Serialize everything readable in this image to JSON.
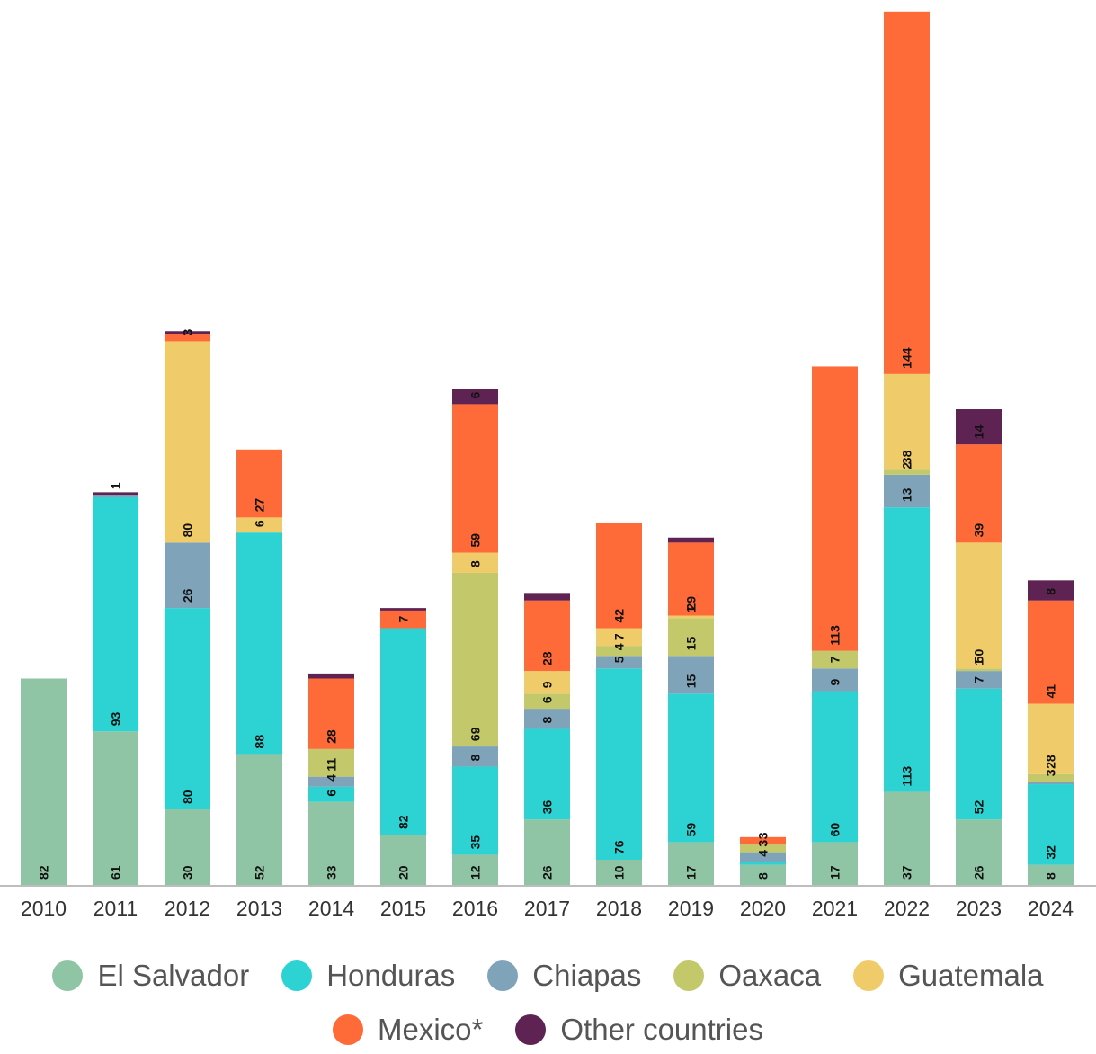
{
  "chart_data": {
    "type": "bar",
    "stacked": true,
    "categories": [
      "2010",
      "2011",
      "2012",
      "2013",
      "2014",
      "2015",
      "2016",
      "2017",
      "2018",
      "2019",
      "2020",
      "2021",
      "2022",
      "2023",
      "2024"
    ],
    "series": [
      {
        "name": "El Salvador",
        "color": "#8fc4a4",
        "values": [
          82,
          61,
          30,
          52,
          33,
          20,
          12,
          26,
          10,
          17,
          8,
          17,
          37,
          26,
          8
        ],
        "labels": [
          "82",
          "61",
          "30",
          "52",
          "33",
          "20",
          "12",
          "26",
          "10",
          "17",
          "8",
          "17",
          "37",
          "26",
          "8"
        ]
      },
      {
        "name": "Honduras",
        "color": "#2dd3d3",
        "values": [
          null,
          93,
          80,
          88,
          6,
          82,
          35,
          36,
          76,
          59,
          1,
          60,
          113,
          52,
          32
        ],
        "labels": [
          "",
          "93",
          "80",
          "88",
          "6",
          "82",
          "35",
          "36",
          "76",
          "59",
          "",
          "60",
          "113",
          "52",
          "32"
        ]
      },
      {
        "name": "Chiapas",
        "color": "#7fa4b9",
        "values": [
          null,
          1,
          26,
          null,
          4,
          null,
          8,
          8,
          5,
          15,
          4,
          9,
          13,
          7,
          1
        ],
        "labels": [
          "",
          "",
          "26",
          "",
          "4",
          "",
          "8",
          "8",
          "5",
          "15",
          "4",
          "9",
          "13",
          "7",
          ""
        ]
      },
      {
        "name": "Oaxaca",
        "color": "#c3c96a",
        "values": [
          null,
          null,
          null,
          null,
          11,
          null,
          69,
          6,
          4,
          15,
          3,
          7,
          2,
          1,
          3
        ],
        "labels": [
          "",
          "",
          "",
          "",
          "11",
          "",
          "69",
          "6",
          "4",
          "15",
          "3",
          "7",
          "2",
          "1",
          "3"
        ]
      },
      {
        "name": "Guatemala",
        "color": "#f0cb69",
        "values": [
          null,
          null,
          80,
          6,
          null,
          null,
          8,
          9,
          7,
          1,
          null,
          null,
          38,
          50,
          28
        ],
        "labels": [
          "",
          "",
          "80",
          "6",
          "",
          "",
          "8",
          "9",
          "7",
          "1",
          "",
          "",
          "38",
          "50",
          "28"
        ]
      },
      {
        "name": "Mexico*",
        "color": "#ff6b38",
        "values": [
          null,
          null,
          3,
          27,
          28,
          7,
          59,
          28,
          42,
          29,
          3,
          113,
          144,
          39,
          41
        ],
        "labels": [
          "",
          "",
          "3",
          "27",
          "28",
          "7",
          "59",
          "28",
          "42",
          "29",
          "3",
          "113",
          "144",
          "39",
          "41"
        ]
      },
      {
        "name": "Other countries",
        "color": "#5e2352",
        "values": [
          null,
          1,
          1,
          null,
          2,
          1,
          6,
          3,
          null,
          2,
          null,
          null,
          null,
          14,
          8
        ],
        "labels": [
          "",
          "1",
          "",
          "",
          "",
          "",
          "6",
          "",
          "",
          "",
          "",
          "",
          "",
          "14",
          "8"
        ]
      }
    ],
    "ylim": [
      0,
      348
    ],
    "grid": false,
    "legend_position": "bottom",
    "title": "",
    "xlabel": "",
    "ylabel": ""
  },
  "legend": {
    "row1": [
      "El Salvador",
      "Honduras",
      "Chiapas",
      "Oaxaca",
      "Guatemala"
    ],
    "row2": [
      "Mexico*",
      "Other countries"
    ]
  },
  "colors": {
    "axis": "#bdbdbd",
    "tick_label": "#333333",
    "value_label": "#111111"
  }
}
